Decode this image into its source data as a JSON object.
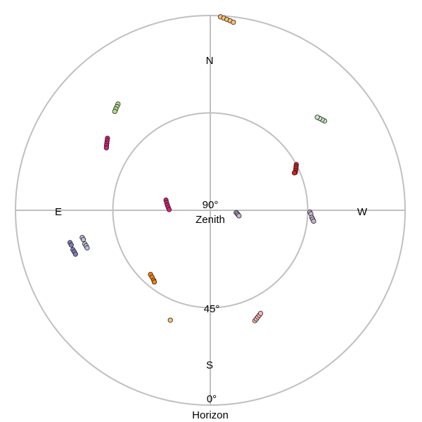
{
  "chart_data": {
    "type": "scatter",
    "projection": "polar-sky",
    "title": "",
    "grid": true,
    "radial_labels": [
      {
        "elevation_deg": 90,
        "text": "90°",
        "subtext": "Zenith"
      },
      {
        "elevation_deg": 45,
        "text": "45°",
        "subtext": ""
      },
      {
        "elevation_deg": 0,
        "text": "0°",
        "subtext": "Horizon"
      }
    ],
    "directions": [
      {
        "azimuth_deg": 0,
        "text": "N"
      },
      {
        "azimuth_deg": 270,
        "text": "E"
      },
      {
        "azimuth_deg": 180,
        "text": "S"
      },
      {
        "azimuth_deg": 90,
        "text": "W"
      }
    ],
    "series": [
      {
        "color": "#fdbf6f",
        "points": [
          [
            3,
            0.5
          ],
          [
            4,
            1
          ],
          [
            5,
            1.5
          ],
          [
            6,
            2
          ],
          [
            7,
            2.5
          ]
        ]
      },
      {
        "color": "#b2df8a",
        "points": [
          [
            319,
            25
          ],
          [
            318,
            25.5
          ],
          [
            317,
            26
          ],
          [
            316,
            26.5
          ]
        ]
      },
      {
        "color": "#c7e9c0",
        "points": [
          [
            52,
            23
          ],
          [
            51,
            23.5
          ],
          [
            50,
            24
          ],
          [
            49,
            24.5
          ]
        ]
      },
      {
        "color": "#dd1c77",
        "points": [
          [
            305,
            32
          ],
          [
            304,
            32.5
          ],
          [
            303,
            33
          ],
          [
            302,
            33.5
          ],
          [
            301,
            34
          ]
        ]
      },
      {
        "color": "#e31a1c",
        "points": [
          [
            62,
            45
          ],
          [
            63,
            45.5
          ],
          [
            64,
            46
          ],
          [
            65,
            46.5
          ],
          [
            66,
            47
          ],
          [
            66,
            47.5
          ]
        ]
      },
      {
        "color": "#dd1c77",
        "points": [
          [
            283,
            69
          ],
          [
            280,
            69.5
          ],
          [
            277,
            70
          ],
          [
            274,
            70.5
          ],
          [
            271,
            71
          ]
        ]
      },
      {
        "color": "#cab2d6",
        "points": [
          [
            95,
            78
          ],
          [
            97,
            77.5
          ],
          [
            99,
            77
          ],
          [
            101,
            76.5
          ]
        ]
      },
      {
        "color": "#cab2d6",
        "points": [
          [
            91,
            44
          ],
          [
            92,
            43.5
          ],
          [
            94,
            43
          ],
          [
            95,
            42.5
          ],
          [
            96,
            42
          ]
        ]
      },
      {
        "color": "#807dba",
        "points": [
          [
            257,
            23.5
          ],
          [
            256,
            23.8
          ],
          [
            254,
            24
          ],
          [
            253,
            24.3
          ],
          [
            252,
            24.5
          ]
        ]
      },
      {
        "color": "#bcbddc",
        "points": [
          [
            258,
            29.5
          ],
          [
            257,
            29.8
          ],
          [
            255,
            30
          ],
          [
            254,
            30.3
          ],
          [
            253,
            30.5
          ]
        ]
      },
      {
        "color": "#ff7f00",
        "points": [
          [
            223,
            49.5
          ],
          [
            221,
            49
          ],
          [
            219,
            48.5
          ],
          [
            218,
            48
          ]
        ]
      },
      {
        "color": "#fdbf6f",
        "points": [
          [
            200,
            36
          ]
        ]
      },
      {
        "color": "#fbb4ae",
        "points": [
          [
            158,
            35
          ],
          [
            157,
            35.5
          ],
          [
            156,
            36
          ],
          [
            155,
            36.5
          ],
          [
            154,
            37
          ]
        ]
      }
    ]
  }
}
